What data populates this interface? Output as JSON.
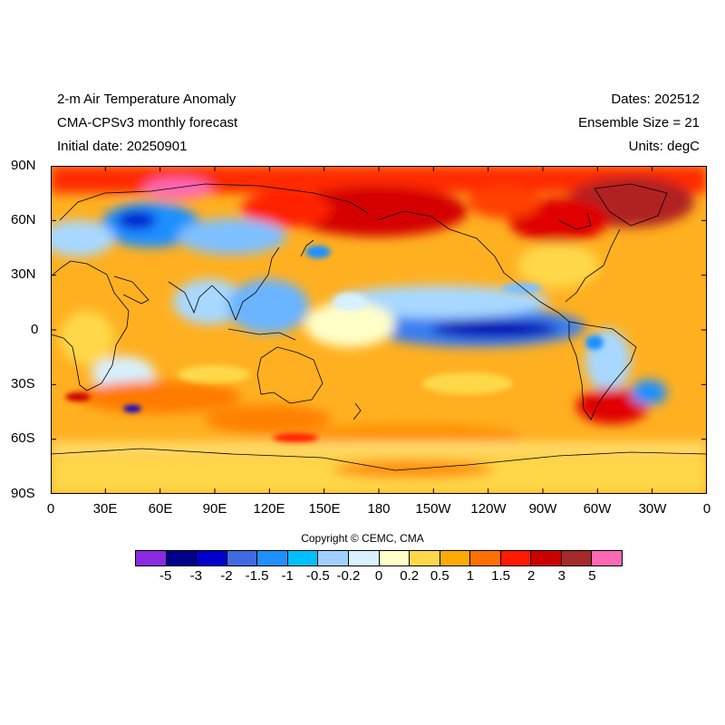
{
  "header": {
    "left": [
      "2-m Air Temperature Anomaly",
      "CMA-CPSv3 monthly forecast",
      "Initial date: 20250901"
    ],
    "right": [
      "Dates: 202512",
      "Ensemble Size = 21",
      "Units: degC"
    ]
  },
  "map": {
    "projection": "equirectangular",
    "lon_range": [
      0,
      360
    ],
    "lat_range": [
      -90,
      90
    ],
    "lat_ticks": [
      "90N",
      "60N",
      "30N",
      "0",
      "30S",
      "60S",
      "90S"
    ],
    "lon_ticks": [
      "0",
      "30E",
      "60E",
      "90E",
      "120E",
      "150E",
      "180",
      "150W",
      "120W",
      "90W",
      "60W",
      "30W",
      "0"
    ],
    "features": [
      {
        "region": "Arctic Ocean / northern Eurasia",
        "anomaly": "2 to 5"
      },
      {
        "region": "Western Siberia (60-75N, 60-90E)",
        "anomaly": ">5"
      },
      {
        "region": "Central Asia / Kazakhstan",
        "anomaly": "-3 to -1.5"
      },
      {
        "region": "Northeast Siberia / Kamchatka",
        "anomaly": "2 to 3"
      },
      {
        "region": "Northern Canada / Greenland",
        "anomaly": "2 to 5"
      },
      {
        "region": "Eastern equatorial Pacific (La Niña)",
        "anomaly": "-3 to -1"
      },
      {
        "region": "Southern Ocean",
        "anomaly": "0.5 to 1.5"
      }
    ]
  },
  "copyright": "Copyright © CEMC, CMA",
  "colorbar": {
    "colors": [
      "#8a2be2",
      "#00008b",
      "#0000cd",
      "#4169e1",
      "#1e90ff",
      "#00bfff",
      "#a0cfff",
      "#d8f0ff",
      "#ffffc8",
      "#ffd84a",
      "#ffaa00",
      "#ff7000",
      "#ff1a00",
      "#cc0000",
      "#a52a2a",
      "#ff69b4"
    ],
    "labels": [
      "-5",
      "-3",
      "-2",
      "-1.5",
      "-1",
      "-0.5",
      "-0.2",
      "0",
      "0.2",
      "0.5",
      "1",
      "1.5",
      "2",
      "3",
      "5"
    ]
  }
}
